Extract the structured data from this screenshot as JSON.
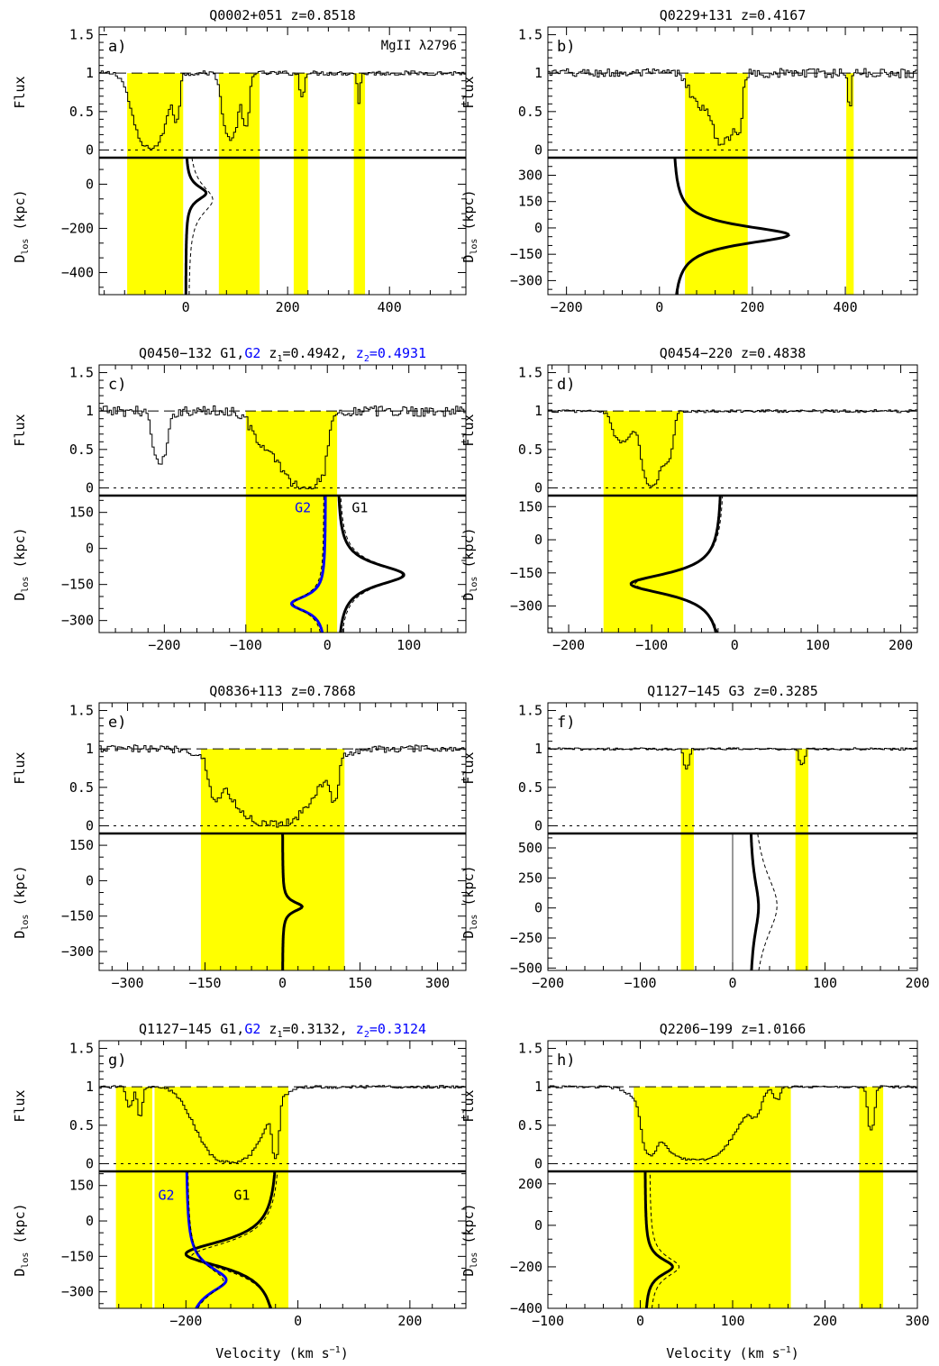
{
  "figure": {
    "xlabel": "Velocity (km s",
    "xlabel_sup": "−1",
    "xlabel_end": ")",
    "flux_ylabel": "Flux",
    "dlos_ylabel_main": "D",
    "dlos_ylabel_sub": "los",
    "dlos_ylabel_unit": "(kpc)"
  },
  "colors": {
    "highlight": "#ffff00",
    "spectrum": "#000000",
    "g2_curve": "#0000ff"
  },
  "chart_data": [
    {
      "id": "a",
      "panel_label": "a)",
      "type": "line",
      "title": "Q0002+051  z=0.8518",
      "annotation": "MgII λ2796",
      "xlim": [
        -170,
        550
      ],
      "xticks": [
        0,
        200,
        400
      ],
      "flux_ylim": [
        -0.1,
        1.6
      ],
      "flux_yticks": [
        0,
        0.5,
        1,
        1.5
      ],
      "dlos_ylim": [
        -500,
        120
      ],
      "dlos_yticks": [
        -400,
        -200,
        0
      ],
      "shaded_regions": [
        [
          -115,
          -5
        ],
        [
          65,
          145
        ],
        [
          212,
          240
        ],
        [
          330,
          352
        ]
      ],
      "absorption": [
        {
          "center": -70,
          "half_width": 42,
          "min_flux": 0.03
        },
        {
          "center": -18,
          "half_width": 8,
          "min_flux": 0.45
        },
        {
          "center": 88,
          "half_width": 20,
          "min_flux": 0.15
        },
        {
          "center": 118,
          "half_width": 9,
          "min_flux": 0.3
        },
        {
          "center": 228,
          "half_width": 6,
          "min_flux": 0.7
        },
        {
          "center": 340,
          "half_width": 4,
          "min_flux": 0.62
        }
      ],
      "noise": 0.03,
      "models": [
        {
          "name": "",
          "v0": 0,
          "amp": 40,
          "peak_d": -40,
          "width": 40,
          "range": [
            -500,
            120
          ],
          "style": "solid"
        },
        {
          "name": "",
          "v0": 5,
          "amp": 48,
          "peak_d": -70,
          "width": 80,
          "range": [
            -500,
            120
          ],
          "style": "dashed"
        }
      ]
    },
    {
      "id": "b",
      "panel_label": "b)",
      "type": "line",
      "title": "Q0229+131  z=0.4167",
      "xlim": [
        -240,
        555
      ],
      "xticks": [
        -200,
        0,
        200,
        400
      ],
      "flux_ylim": [
        -0.1,
        1.6
      ],
      "flux_yticks": [
        0,
        0.5,
        1,
        1.5
      ],
      "dlos_ylim": [
        -380,
        400
      ],
      "dlos_yticks": [
        -300,
        -150,
        0,
        150,
        300
      ],
      "shaded_regions": [
        [
          55,
          190
        ],
        [
          402,
          418
        ]
      ],
      "absorption": [
        {
          "center": 100,
          "half_width": 40,
          "min_flux": 0.55
        },
        {
          "center": 140,
          "half_width": 30,
          "min_flux": 0.12
        },
        {
          "center": 170,
          "half_width": 10,
          "min_flux": 0.3
        },
        {
          "center": 410,
          "half_width": 5,
          "min_flux": 0.6
        }
      ],
      "noise": 0.06,
      "models": [
        {
          "name": "",
          "v0": 28,
          "amp": 250,
          "peak_d": -40,
          "width": 65,
          "range": [
            -380,
            400
          ],
          "style": "solid"
        }
      ]
    },
    {
      "id": "c",
      "panel_label": "c)",
      "type": "line",
      "title_main": "Q0450−132 G1,",
      "title_g2": "G2",
      "title_z1_pre": " z",
      "title_z1_sub": "1",
      "title_z1_val": "=0.4942, ",
      "title_z2_pre": "z",
      "title_z2_sub": "2",
      "title_z2_val": "=0.4931",
      "xlim": [
        -280,
        170
      ],
      "xticks": [
        -200,
        -100,
        0,
        100
      ],
      "flux_ylim": [
        -0.1,
        1.6
      ],
      "flux_yticks": [
        0,
        0.5,
        1,
        1.5
      ],
      "dlos_ylim": [
        -350,
        220
      ],
      "dlos_yticks": [
        -300,
        -150,
        0,
        150
      ],
      "shaded_regions": [
        [
          -100,
          12
        ]
      ],
      "absorption": [
        {
          "center": -205,
          "half_width": 12,
          "min_flux": 0.32
        },
        {
          "center": -65,
          "half_width": 30,
          "min_flux": 0.45
        },
        {
          "center": -30,
          "half_width": 28,
          "min_flux": 0.02
        },
        {
          "center": -10,
          "half_width": 10,
          "min_flux": 0.2
        }
      ],
      "noise": 0.07,
      "models": [
        {
          "name": "G1",
          "v0": 12,
          "amp": 82,
          "peak_d": -110,
          "width": 55,
          "range": [
            -350,
            220
          ],
          "style": "solid",
          "color": "black"
        },
        {
          "name": "",
          "v0": 14,
          "amp": 78,
          "peak_d": -110,
          "width": 60,
          "range": [
            -350,
            220
          ],
          "style": "dashed",
          "color": "black"
        },
        {
          "name": "G2",
          "v0": -2,
          "amp": -42,
          "peak_d": -230,
          "width": 40,
          "range": [
            -350,
            220
          ],
          "style": "solid",
          "color": "blue"
        },
        {
          "name": "",
          "v0": -4,
          "amp": -38,
          "peak_d": -230,
          "width": 45,
          "range": [
            -350,
            220
          ],
          "style": "dashed",
          "color": "black"
        }
      ],
      "curve_labels": [
        {
          "text": "G1",
          "v": 40,
          "d": 150
        },
        {
          "text": "G2",
          "v": -30,
          "d": 150,
          "color": "blue"
        }
      ]
    },
    {
      "id": "d",
      "panel_label": "d)",
      "type": "line",
      "title": "Q0454−220  z=0.4838",
      "xlim": [
        -225,
        220
      ],
      "xticks": [
        -200,
        -100,
        0,
        100,
        200
      ],
      "flux_ylim": [
        -0.1,
        1.6
      ],
      "flux_yticks": [
        0,
        0.5,
        1,
        1.5
      ],
      "dlos_ylim": [
        -420,
        200
      ],
      "dlos_yticks": [
        -300,
        -150,
        0,
        150
      ],
      "shaded_regions": [
        [
          -158,
          -62
        ]
      ],
      "absorption": [
        {
          "center": -135,
          "half_width": 15,
          "min_flux": 0.6
        },
        {
          "center": -100,
          "half_width": 16,
          "min_flux": 0.02
        },
        {
          "center": -80,
          "half_width": 8,
          "min_flux": 0.4
        }
      ],
      "noise": 0.02,
      "models": [
        {
          "name": "",
          "v0": -15,
          "amp": -110,
          "peak_d": -200,
          "width": 60,
          "range": [
            -420,
            200
          ],
          "style": "solid"
        },
        {
          "name": "",
          "v0": -12,
          "amp": -108,
          "peak_d": -200,
          "width": 65,
          "range": [
            -420,
            200
          ],
          "style": "dashed"
        }
      ]
    },
    {
      "id": "e",
      "panel_label": "e)",
      "type": "line",
      "title": "Q0836+113  z=0.7868",
      "xlim": [
        -355,
        355
      ],
      "xticks": [
        -300,
        -150,
        0,
        150,
        300
      ],
      "flux_ylim": [
        -0.1,
        1.6
      ],
      "flux_yticks": [
        0,
        0.5,
        1,
        1.5
      ],
      "dlos_ylim": [
        -380,
        200
      ],
      "dlos_yticks": [
        -300,
        -150,
        0,
        150
      ],
      "shaded_regions": [
        [
          -158,
          120
        ]
      ],
      "absorption": [
        {
          "center": -130,
          "half_width": 15,
          "min_flux": 0.5
        },
        {
          "center": -20,
          "half_width": 105,
          "min_flux": 0.03
        },
        {
          "center": 100,
          "half_width": 10,
          "min_flux": 0.35
        }
      ],
      "noise": 0.05,
      "models": [
        {
          "name": "",
          "v0": 0,
          "amp": 38,
          "peak_d": -110,
          "width": 25,
          "range": [
            -380,
            200
          ],
          "style": "solid"
        }
      ]
    },
    {
      "id": "f",
      "panel_label": "f)",
      "type": "line",
      "title": "Q1127−145 G3  z=0.3285",
      "xlim": [
        -200,
        200
      ],
      "xticks": [
        -200,
        -100,
        0,
        100,
        200
      ],
      "flux_ylim": [
        -0.1,
        1.6
      ],
      "flux_yticks": [
        0,
        0.5,
        1,
        1.5
      ],
      "dlos_ylim": [
        -520,
        620
      ],
      "dlos_yticks": [
        -500,
        -250,
        0,
        250,
        500
      ],
      "shaded_regions": [
        [
          -56,
          -42
        ],
        [
          68,
          82
        ]
      ],
      "absorption": [
        {
          "center": -50,
          "half_width": 4,
          "min_flux": 0.75
        },
        {
          "center": 75,
          "half_width": 4,
          "min_flux": 0.8
        }
      ],
      "noise": 0.015,
      "vertical_line": 0,
      "models": [
        {
          "name": "",
          "v0": 18,
          "amp": 10,
          "peak_d": 10,
          "width": 300,
          "range": [
            -520,
            620
          ],
          "style": "solid"
        },
        {
          "name": "",
          "v0": 20,
          "amp": 28,
          "peak_d": 20,
          "width": 350,
          "range": [
            -520,
            620
          ],
          "style": "dashed"
        }
      ]
    },
    {
      "id": "g",
      "panel_label": "g)",
      "type": "line",
      "title_main": "Q1127−145 G1,",
      "title_g2": "G2",
      "title_z1_pre": " z",
      "title_z1_sub": "1",
      "title_z1_val": "=0.3132, ",
      "title_z2_pre": "z",
      "title_z2_sub": "2",
      "title_z2_val": "=0.3124",
      "xlim": [
        -355,
        300
      ],
      "xticks": [
        -200,
        0,
        200
      ],
      "flux_ylim": [
        -0.1,
        1.6
      ],
      "flux_yticks": [
        0,
        0.5,
        1,
        1.5
      ],
      "dlos_ylim": [
        -370,
        210
      ],
      "dlos_yticks": [
        -300,
        -150,
        0,
        150
      ],
      "shaded_regions": [
        [
          -325,
          -260
        ],
        [
          -256,
          -17
        ]
      ],
      "absorption": [
        {
          "center": -300,
          "half_width": 8,
          "min_flux": 0.75
        },
        {
          "center": -282,
          "half_width": 6,
          "min_flux": 0.6
        },
        {
          "center": -120,
          "half_width": 75,
          "min_flux": 0.02
        },
        {
          "center": -40,
          "half_width": 8,
          "min_flux": 0.1
        }
      ],
      "noise": 0.02,
      "models": [
        {
          "name": "G1",
          "v0": -35,
          "amp": -165,
          "peak_d": -140,
          "width": 70,
          "range": [
            -370,
            210
          ],
          "style": "solid",
          "color": "black"
        },
        {
          "name": "",
          "v0": -30,
          "amp": -160,
          "peak_d": -150,
          "width": 75,
          "range": [
            -370,
            210
          ],
          "style": "dashed",
          "color": "black"
        },
        {
          "name": "G2",
          "v0": -200,
          "amp": 72,
          "peak_d": -250,
          "width": 70,
          "range": [
            -370,
            210
          ],
          "style": "solid",
          "color": "blue"
        },
        {
          "name": "",
          "v0": -198,
          "amp": 65,
          "peak_d": -255,
          "width": 75,
          "range": [
            -370,
            210
          ],
          "style": "dashed",
          "color": "black"
        }
      ],
      "curve_labels": [
        {
          "text": "G1",
          "v": -100,
          "d": 90
        },
        {
          "text": "G2",
          "v": -235,
          "d": 90,
          "color": "blue"
        }
      ]
    },
    {
      "id": "h",
      "panel_label": "h)",
      "type": "line",
      "title": "Q2206−199  z=1.0166",
      "xlim": [
        -100,
        300
      ],
      "xticks": [
        -100,
        0,
        100,
        200,
        300
      ],
      "flux_ylim": [
        -0.1,
        1.6
      ],
      "flux_yticks": [
        0,
        0.5,
        1,
        1.5
      ],
      "dlos_ylim": [
        -400,
        260
      ],
      "dlos_yticks": [
        -400,
        -200,
        0,
        200
      ],
      "shaded_regions": [
        [
          -7,
          163
        ],
        [
          237,
          263
        ]
      ],
      "absorption": [
        {
          "center": 10,
          "half_width": 10,
          "min_flux": 0.2
        },
        {
          "center": 60,
          "half_width": 55,
          "min_flux": 0.05
        },
        {
          "center": 125,
          "half_width": 8,
          "min_flux": 0.75
        },
        {
          "center": 148,
          "half_width": 5,
          "min_flux": 0.85
        },
        {
          "center": 250,
          "half_width": 5,
          "min_flux": 0.45
        }
      ],
      "noise": 0.015,
      "models": [
        {
          "name": "",
          "v0": 5,
          "amp": 30,
          "peak_d": -200,
          "width": 50,
          "range": [
            -400,
            260
          ],
          "style": "solid"
        },
        {
          "name": "",
          "v0": 10,
          "amp": 32,
          "peak_d": -200,
          "width": 60,
          "range": [
            -400,
            260
          ],
          "style": "dashed"
        }
      ]
    }
  ]
}
